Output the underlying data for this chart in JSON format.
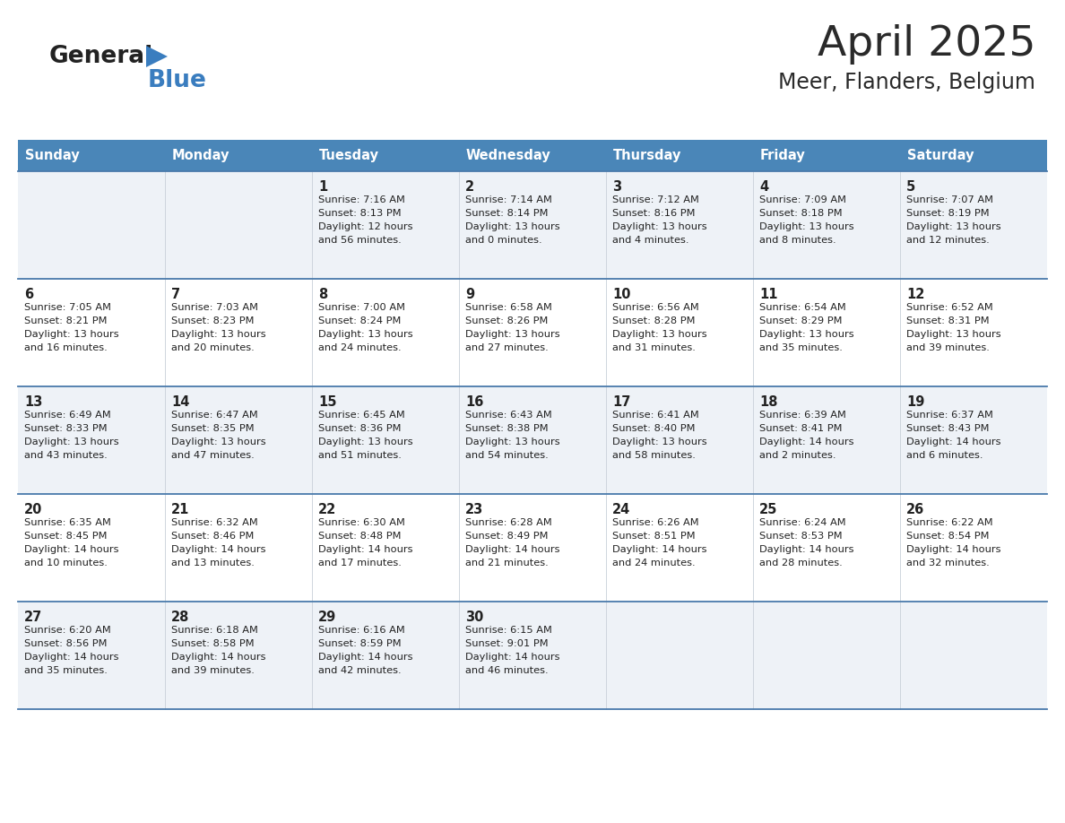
{
  "title": "April 2025",
  "subtitle": "Meer, Flanders, Belgium",
  "header_color": "#4a86b8",
  "header_text_color": "#ffffff",
  "cell_bg_even": "#eef2f7",
  "cell_bg_odd": "#ffffff",
  "row_border_color": "#4a7aab",
  "days_of_week": [
    "Sunday",
    "Monday",
    "Tuesday",
    "Wednesday",
    "Thursday",
    "Friday",
    "Saturday"
  ],
  "weeks": [
    [
      {
        "day": "",
        "sunrise": "",
        "sunset": "",
        "daylight": ""
      },
      {
        "day": "",
        "sunrise": "",
        "sunset": "",
        "daylight": ""
      },
      {
        "day": "1",
        "sunrise": "Sunrise: 7:16 AM",
        "sunset": "Sunset: 8:13 PM",
        "daylight": "Daylight: 12 hours\nand 56 minutes."
      },
      {
        "day": "2",
        "sunrise": "Sunrise: 7:14 AM",
        "sunset": "Sunset: 8:14 PM",
        "daylight": "Daylight: 13 hours\nand 0 minutes."
      },
      {
        "day": "3",
        "sunrise": "Sunrise: 7:12 AM",
        "sunset": "Sunset: 8:16 PM",
        "daylight": "Daylight: 13 hours\nand 4 minutes."
      },
      {
        "day": "4",
        "sunrise": "Sunrise: 7:09 AM",
        "sunset": "Sunset: 8:18 PM",
        "daylight": "Daylight: 13 hours\nand 8 minutes."
      },
      {
        "day": "5",
        "sunrise": "Sunrise: 7:07 AM",
        "sunset": "Sunset: 8:19 PM",
        "daylight": "Daylight: 13 hours\nand 12 minutes."
      }
    ],
    [
      {
        "day": "6",
        "sunrise": "Sunrise: 7:05 AM",
        "sunset": "Sunset: 8:21 PM",
        "daylight": "Daylight: 13 hours\nand 16 minutes."
      },
      {
        "day": "7",
        "sunrise": "Sunrise: 7:03 AM",
        "sunset": "Sunset: 8:23 PM",
        "daylight": "Daylight: 13 hours\nand 20 minutes."
      },
      {
        "day": "8",
        "sunrise": "Sunrise: 7:00 AM",
        "sunset": "Sunset: 8:24 PM",
        "daylight": "Daylight: 13 hours\nand 24 minutes."
      },
      {
        "day": "9",
        "sunrise": "Sunrise: 6:58 AM",
        "sunset": "Sunset: 8:26 PM",
        "daylight": "Daylight: 13 hours\nand 27 minutes."
      },
      {
        "day": "10",
        "sunrise": "Sunrise: 6:56 AM",
        "sunset": "Sunset: 8:28 PM",
        "daylight": "Daylight: 13 hours\nand 31 minutes."
      },
      {
        "day": "11",
        "sunrise": "Sunrise: 6:54 AM",
        "sunset": "Sunset: 8:29 PM",
        "daylight": "Daylight: 13 hours\nand 35 minutes."
      },
      {
        "day": "12",
        "sunrise": "Sunrise: 6:52 AM",
        "sunset": "Sunset: 8:31 PM",
        "daylight": "Daylight: 13 hours\nand 39 minutes."
      }
    ],
    [
      {
        "day": "13",
        "sunrise": "Sunrise: 6:49 AM",
        "sunset": "Sunset: 8:33 PM",
        "daylight": "Daylight: 13 hours\nand 43 minutes."
      },
      {
        "day": "14",
        "sunrise": "Sunrise: 6:47 AM",
        "sunset": "Sunset: 8:35 PM",
        "daylight": "Daylight: 13 hours\nand 47 minutes."
      },
      {
        "day": "15",
        "sunrise": "Sunrise: 6:45 AM",
        "sunset": "Sunset: 8:36 PM",
        "daylight": "Daylight: 13 hours\nand 51 minutes."
      },
      {
        "day": "16",
        "sunrise": "Sunrise: 6:43 AM",
        "sunset": "Sunset: 8:38 PM",
        "daylight": "Daylight: 13 hours\nand 54 minutes."
      },
      {
        "day": "17",
        "sunrise": "Sunrise: 6:41 AM",
        "sunset": "Sunset: 8:40 PM",
        "daylight": "Daylight: 13 hours\nand 58 minutes."
      },
      {
        "day": "18",
        "sunrise": "Sunrise: 6:39 AM",
        "sunset": "Sunset: 8:41 PM",
        "daylight": "Daylight: 14 hours\nand 2 minutes."
      },
      {
        "day": "19",
        "sunrise": "Sunrise: 6:37 AM",
        "sunset": "Sunset: 8:43 PM",
        "daylight": "Daylight: 14 hours\nand 6 minutes."
      }
    ],
    [
      {
        "day": "20",
        "sunrise": "Sunrise: 6:35 AM",
        "sunset": "Sunset: 8:45 PM",
        "daylight": "Daylight: 14 hours\nand 10 minutes."
      },
      {
        "day": "21",
        "sunrise": "Sunrise: 6:32 AM",
        "sunset": "Sunset: 8:46 PM",
        "daylight": "Daylight: 14 hours\nand 13 minutes."
      },
      {
        "day": "22",
        "sunrise": "Sunrise: 6:30 AM",
        "sunset": "Sunset: 8:48 PM",
        "daylight": "Daylight: 14 hours\nand 17 minutes."
      },
      {
        "day": "23",
        "sunrise": "Sunrise: 6:28 AM",
        "sunset": "Sunset: 8:49 PM",
        "daylight": "Daylight: 14 hours\nand 21 minutes."
      },
      {
        "day": "24",
        "sunrise": "Sunrise: 6:26 AM",
        "sunset": "Sunset: 8:51 PM",
        "daylight": "Daylight: 14 hours\nand 24 minutes."
      },
      {
        "day": "25",
        "sunrise": "Sunrise: 6:24 AM",
        "sunset": "Sunset: 8:53 PM",
        "daylight": "Daylight: 14 hours\nand 28 minutes."
      },
      {
        "day": "26",
        "sunrise": "Sunrise: 6:22 AM",
        "sunset": "Sunset: 8:54 PM",
        "daylight": "Daylight: 14 hours\nand 32 minutes."
      }
    ],
    [
      {
        "day": "27",
        "sunrise": "Sunrise: 6:20 AM",
        "sunset": "Sunset: 8:56 PM",
        "daylight": "Daylight: 14 hours\nand 35 minutes."
      },
      {
        "day": "28",
        "sunrise": "Sunrise: 6:18 AM",
        "sunset": "Sunset: 8:58 PM",
        "daylight": "Daylight: 14 hours\nand 39 minutes."
      },
      {
        "day": "29",
        "sunrise": "Sunrise: 6:16 AM",
        "sunset": "Sunset: 8:59 PM",
        "daylight": "Daylight: 14 hours\nand 42 minutes."
      },
      {
        "day": "30",
        "sunrise": "Sunrise: 6:15 AM",
        "sunset": "Sunset: 9:01 PM",
        "daylight": "Daylight: 14 hours\nand 46 minutes."
      },
      {
        "day": "",
        "sunrise": "",
        "sunset": "",
        "daylight": ""
      },
      {
        "day": "",
        "sunrise": "",
        "sunset": "",
        "daylight": ""
      },
      {
        "day": "",
        "sunrise": "",
        "sunset": "",
        "daylight": ""
      }
    ]
  ]
}
